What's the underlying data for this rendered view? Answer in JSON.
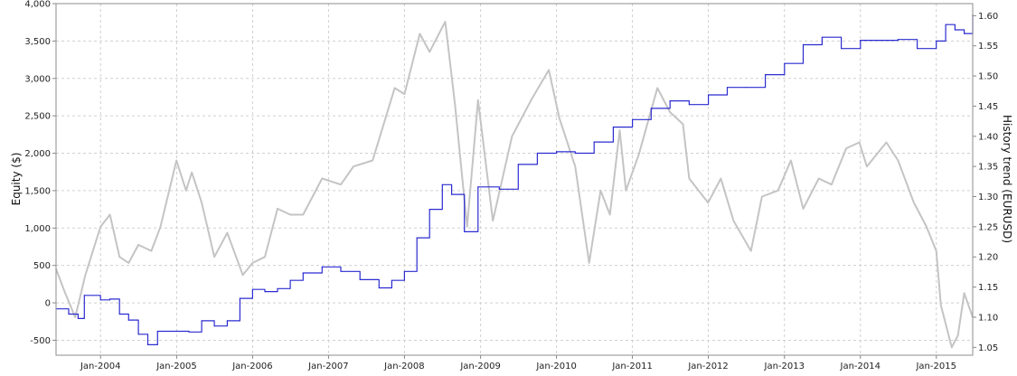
{
  "chart_data": {
    "type": "line",
    "title": "",
    "ylabel": "Equity ($)",
    "y2label": "History trend (EURUSD)",
    "grid": true,
    "xlim": [
      "2003-06-01",
      "2015-06-25"
    ],
    "ylim": [
      -700,
      4000
    ],
    "y2lim": [
      1.037,
      1.62
    ],
    "x_ticks": [
      {
        "date": "2004-01-01",
        "label": "Jan-2004"
      },
      {
        "date": "2005-01-01",
        "label": "Jan-2005"
      },
      {
        "date": "2006-01-01",
        "label": "Jan-2006"
      },
      {
        "date": "2007-01-01",
        "label": "Jan-2007"
      },
      {
        "date": "2008-01-01",
        "label": "Jan-2008"
      },
      {
        "date": "2009-01-01",
        "label": "Jan-2009"
      },
      {
        "date": "2010-01-01",
        "label": "Jan-2010"
      },
      {
        "date": "2011-01-01",
        "label": "Jan-2011"
      },
      {
        "date": "2012-01-01",
        "label": "Jan-2012"
      },
      {
        "date": "2013-01-01",
        "label": "Jan-2013"
      },
      {
        "date": "2014-01-01",
        "label": "Jan-2014"
      },
      {
        "date": "2015-01-01",
        "label": "Jan-2015"
      }
    ],
    "y_ticks": [
      {
        "value": -500,
        "label": "-500"
      },
      {
        "value": 0,
        "label": "0"
      },
      {
        "value": 500,
        "label": "500"
      },
      {
        "value": 1000,
        "label": "1,000"
      },
      {
        "value": 1500,
        "label": "1,500"
      },
      {
        "value": 2000,
        "label": "2,000"
      },
      {
        "value": 2500,
        "label": "2,500"
      },
      {
        "value": 3000,
        "label": "3,000"
      },
      {
        "value": 3500,
        "label": "3,500"
      },
      {
        "value": 4000,
        "label": "4,000"
      }
    ],
    "y2_ticks": [
      {
        "value": 1.05,
        "label": "1.05"
      },
      {
        "value": 1.1,
        "label": "1.10"
      },
      {
        "value": 1.15,
        "label": "1.15"
      },
      {
        "value": 1.2,
        "label": "1.20"
      },
      {
        "value": 1.25,
        "label": "1.25"
      },
      {
        "value": 1.3,
        "label": "1.30"
      },
      {
        "value": 1.35,
        "label": "1.35"
      },
      {
        "value": 1.4,
        "label": "1.40"
      },
      {
        "value": 1.45,
        "label": "1.45"
      },
      {
        "value": 1.5,
        "label": "1.50"
      },
      {
        "value": 1.55,
        "label": "1.55"
      },
      {
        "value": 1.6,
        "label": "1.60"
      }
    ],
    "series": [
      {
        "axis": "right",
        "color": "#c4c4c4",
        "style": "line",
        "points": [
          [
            "2003-06-01",
            1.18
          ],
          [
            "2003-07-15",
            1.14
          ],
          [
            "2003-09-01",
            1.1
          ],
          [
            "2003-10-20",
            1.17
          ],
          [
            "2004-01-01",
            1.25
          ],
          [
            "2004-02-15",
            1.27
          ],
          [
            "2004-04-01",
            1.2
          ],
          [
            "2004-05-15",
            1.19
          ],
          [
            "2004-07-01",
            1.22
          ],
          [
            "2004-09-01",
            1.21
          ],
          [
            "2004-10-15",
            1.25
          ],
          [
            "2004-12-31",
            1.36
          ],
          [
            "2005-02-15",
            1.31
          ],
          [
            "2005-03-15",
            1.34
          ],
          [
            "2005-05-01",
            1.29
          ],
          [
            "2005-07-01",
            1.2
          ],
          [
            "2005-09-01",
            1.24
          ],
          [
            "2005-11-15",
            1.17
          ],
          [
            "2006-01-01",
            1.19
          ],
          [
            "2006-03-01",
            1.2
          ],
          [
            "2006-05-01",
            1.28
          ],
          [
            "2006-07-01",
            1.27
          ],
          [
            "2006-09-01",
            1.27
          ],
          [
            "2006-12-01",
            1.33
          ],
          [
            "2007-03-01",
            1.32
          ],
          [
            "2007-05-01",
            1.35
          ],
          [
            "2007-08-01",
            1.36
          ],
          [
            "2007-11-15",
            1.48
          ],
          [
            "2008-01-01",
            1.47
          ],
          [
            "2008-03-15",
            1.57
          ],
          [
            "2008-05-01",
            1.54
          ],
          [
            "2008-07-15",
            1.59
          ],
          [
            "2008-09-01",
            1.45
          ],
          [
            "2008-10-28",
            1.25
          ],
          [
            "2008-12-20",
            1.46
          ],
          [
            "2009-03-01",
            1.26
          ],
          [
            "2009-06-01",
            1.4
          ],
          [
            "2009-09-01",
            1.46
          ],
          [
            "2009-11-25",
            1.51
          ],
          [
            "2010-01-15",
            1.43
          ],
          [
            "2010-04-01",
            1.35
          ],
          [
            "2010-06-07",
            1.19
          ],
          [
            "2010-08-01",
            1.31
          ],
          [
            "2010-09-15",
            1.27
          ],
          [
            "2010-11-01",
            1.41
          ],
          [
            "2010-12-01",
            1.31
          ],
          [
            "2011-02-01",
            1.37
          ],
          [
            "2011-05-01",
            1.48
          ],
          [
            "2011-07-01",
            1.44
          ],
          [
            "2011-09-01",
            1.42
          ],
          [
            "2011-10-01",
            1.33
          ],
          [
            "2011-12-31",
            1.29
          ],
          [
            "2012-03-01",
            1.33
          ],
          [
            "2012-05-01",
            1.26
          ],
          [
            "2012-07-24",
            1.21
          ],
          [
            "2012-09-15",
            1.3
          ],
          [
            "2012-12-01",
            1.31
          ],
          [
            "2013-02-01",
            1.36
          ],
          [
            "2013-04-01",
            1.28
          ],
          [
            "2013-06-15",
            1.33
          ],
          [
            "2013-08-15",
            1.32
          ],
          [
            "2013-10-25",
            1.38
          ],
          [
            "2013-12-27",
            1.39
          ],
          [
            "2014-02-01",
            1.35
          ],
          [
            "2014-05-06",
            1.39
          ],
          [
            "2014-07-01",
            1.36
          ],
          [
            "2014-09-15",
            1.29
          ],
          [
            "2014-11-15",
            1.25
          ],
          [
            "2015-01-01",
            1.21
          ],
          [
            "2015-01-23",
            1.12
          ],
          [
            "2015-03-16",
            1.05
          ],
          [
            "2015-04-15",
            1.07
          ],
          [
            "2015-05-15",
            1.14
          ],
          [
            "2015-06-25",
            1.1
          ]
        ]
      },
      {
        "axis": "left",
        "color": "#2b2bd1",
        "style": "step",
        "points": [
          [
            "2003-06-01",
            -80
          ],
          [
            "2003-08-01",
            -150
          ],
          [
            "2003-09-15",
            -210
          ],
          [
            "2003-10-15",
            100
          ],
          [
            "2004-01-01",
            40
          ],
          [
            "2004-02-15",
            50
          ],
          [
            "2004-04-01",
            -150
          ],
          [
            "2004-05-15",
            -230
          ],
          [
            "2004-07-01",
            -420
          ],
          [
            "2004-08-15",
            -560
          ],
          [
            "2004-10-01",
            -380
          ],
          [
            "2004-12-31",
            -380
          ],
          [
            "2005-03-01",
            -390
          ],
          [
            "2005-05-01",
            -240
          ],
          [
            "2005-07-01",
            -310
          ],
          [
            "2005-09-01",
            -240
          ],
          [
            "2005-11-01",
            60
          ],
          [
            "2006-01-01",
            180
          ],
          [
            "2006-03-01",
            150
          ],
          [
            "2006-05-01",
            190
          ],
          [
            "2006-07-01",
            300
          ],
          [
            "2006-09-01",
            400
          ],
          [
            "2006-12-01",
            480
          ],
          [
            "2007-03-01",
            420
          ],
          [
            "2007-06-01",
            310
          ],
          [
            "2007-09-01",
            200
          ],
          [
            "2007-11-01",
            300
          ],
          [
            "2008-01-01",
            420
          ],
          [
            "2008-03-01",
            870
          ],
          [
            "2008-05-01",
            1250
          ],
          [
            "2008-07-01",
            1580
          ],
          [
            "2008-08-15",
            1450
          ],
          [
            "2008-10-15",
            950
          ],
          [
            "2008-12-20",
            1550
          ],
          [
            "2009-04-01",
            1520
          ],
          [
            "2009-07-01",
            1850
          ],
          [
            "2009-10-01",
            2000
          ],
          [
            "2010-01-01",
            2020
          ],
          [
            "2010-04-01",
            2000
          ],
          [
            "2010-07-01",
            2150
          ],
          [
            "2010-10-01",
            2350
          ],
          [
            "2011-01-01",
            2450
          ],
          [
            "2011-04-01",
            2600
          ],
          [
            "2011-07-01",
            2700
          ],
          [
            "2011-10-01",
            2650
          ],
          [
            "2012-01-01",
            2780
          ],
          [
            "2012-04-01",
            2880
          ],
          [
            "2012-07-01",
            2880
          ],
          [
            "2012-10-01",
            3050
          ],
          [
            "2013-01-01",
            3200
          ],
          [
            "2013-04-01",
            3450
          ],
          [
            "2013-07-01",
            3550
          ],
          [
            "2013-10-01",
            3400
          ],
          [
            "2014-01-01",
            3510
          ],
          [
            "2014-04-01",
            3510
          ],
          [
            "2014-07-01",
            3520
          ],
          [
            "2014-10-01",
            3400
          ],
          [
            "2015-01-01",
            3500
          ],
          [
            "2015-02-15",
            3720
          ],
          [
            "2015-04-01",
            3650
          ],
          [
            "2015-05-15",
            3600
          ],
          [
            "2015-06-25",
            3850
          ]
        ]
      }
    ]
  }
}
